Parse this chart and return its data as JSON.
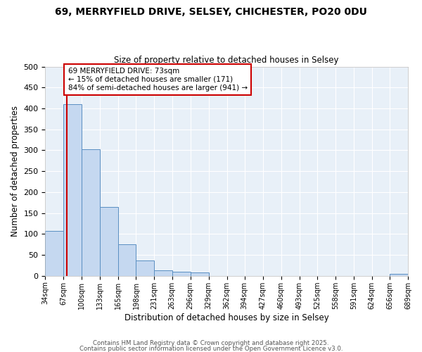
{
  "title": "69, MERRYFIELD DRIVE, SELSEY, CHICHESTER, PO20 0DU",
  "subtitle": "Size of property relative to detached houses in Selsey",
  "xlabel": "Distribution of detached houses by size in Selsey",
  "ylabel": "Number of detached properties",
  "bin_edges": [
    34,
    67,
    100,
    133,
    165,
    198,
    231,
    263,
    296,
    329,
    362,
    394,
    427,
    460,
    493,
    525,
    558,
    591,
    624,
    656,
    689
  ],
  "bar_heights": [
    108,
    410,
    303,
    165,
    76,
    37,
    13,
    9,
    8,
    0,
    0,
    0,
    0,
    0,
    0,
    0,
    0,
    0,
    0,
    4
  ],
  "bar_color": "#c5d8f0",
  "bar_edge_color": "#5a8fc2",
  "vline_x": 73,
  "vline_color": "#cc0000",
  "ylim": [
    0,
    500
  ],
  "yticks": [
    0,
    50,
    100,
    150,
    200,
    250,
    300,
    350,
    400,
    450,
    500
  ],
  "xtick_labels": [
    "34sqm",
    "67sqm",
    "100sqm",
    "133sqm",
    "165sqm",
    "198sqm",
    "231sqm",
    "263sqm",
    "296sqm",
    "329sqm",
    "362sqm",
    "394sqm",
    "427sqm",
    "460sqm",
    "493sqm",
    "525sqm",
    "558sqm",
    "591sqm",
    "624sqm",
    "656sqm",
    "689sqm"
  ],
  "annotation_title": "69 MERRYFIELD DRIVE: 73sqm",
  "annotation_line1": "← 15% of detached houses are smaller (171)",
  "annotation_line2": "84% of semi-detached houses are larger (941) →",
  "annotation_box_color": "#ffffff",
  "annotation_box_edge": "#cc0000",
  "footer1": "Contains HM Land Registry data © Crown copyright and database right 2025.",
  "footer2": "Contains public sector information licensed under the Open Government Licence v3.0.",
  "background_color": "#e8f0f8",
  "grid_color": "#ffffff",
  "fig_bg": "#ffffff"
}
